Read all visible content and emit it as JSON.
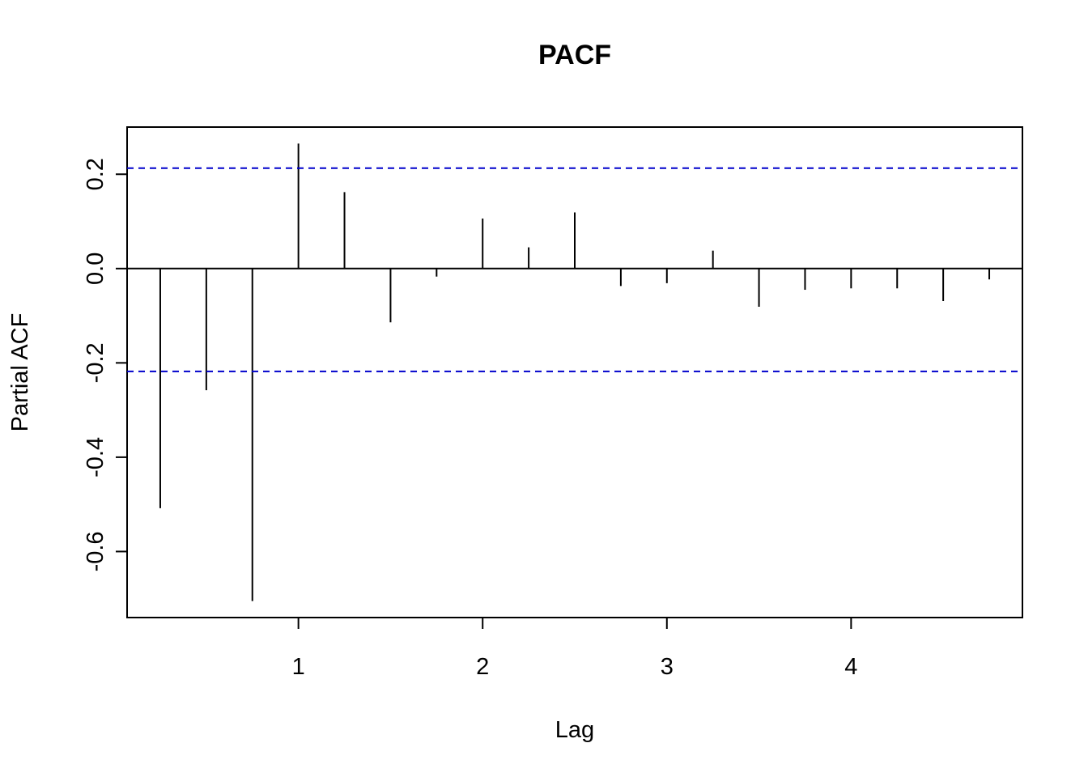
{
  "chart_data": {
    "type": "bar",
    "subtype": "pacf-stem",
    "title": "PACF",
    "xlabel": "Lag",
    "ylabel": "Partial ACF",
    "xlim": [
      0.07,
      4.93
    ],
    "ylim": [
      -0.74,
      0.3
    ],
    "x_ticks": [
      1,
      2,
      3,
      4
    ],
    "y_ticks": [
      -0.6,
      -0.4,
      -0.2,
      0.0,
      0.2
    ],
    "confidence_bounds": [
      0.213,
      -0.218
    ],
    "confidence_color": "#0000cc",
    "stem_color": "#000000",
    "grid": false,
    "lags": [
      0.25,
      0.5,
      0.75,
      1.0,
      1.25,
      1.5,
      1.75,
      2.0,
      2.25,
      2.5,
      2.75,
      3.0,
      3.25,
      3.5,
      3.75,
      4.0,
      4.25,
      4.5,
      4.75
    ],
    "values": [
      -0.508,
      -0.258,
      -0.705,
      0.265,
      0.162,
      -0.114,
      -0.017,
      0.106,
      0.045,
      0.119,
      -0.037,
      -0.031,
      0.038,
      -0.081,
      -0.045,
      -0.042,
      -0.042,
      -0.069,
      -0.023
    ]
  }
}
